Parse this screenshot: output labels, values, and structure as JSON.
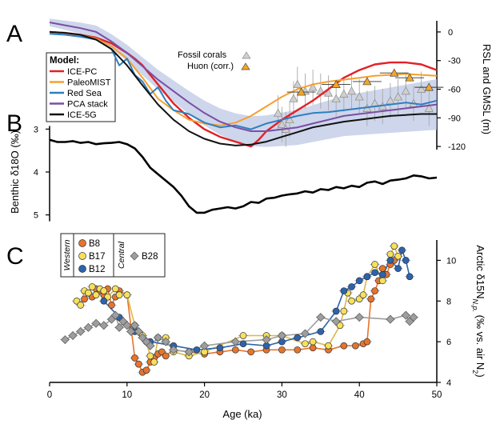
{
  "panel_letters": {
    "a": "A",
    "b": "B",
    "c": "C"
  },
  "x_axis": {
    "label": "Age (ka)",
    "ticks": [
      0,
      10,
      20,
      30,
      40,
      50
    ],
    "range": [
      0,
      50
    ]
  },
  "chart_data": [
    {
      "panel": "A",
      "type": "line",
      "ylabel": "RSL and GMSL (m)",
      "yticks": [
        0,
        -30,
        -60,
        -90,
        -120
      ],
      "ylim": [
        -130,
        10
      ],
      "legend_title": "Model:",
      "legend_placement": "upper-left",
      "series": [
        {
          "name": "ICE-PC",
          "color": "#e32027",
          "x": [
            0,
            2,
            4,
            6,
            8,
            10,
            11,
            12,
            13,
            14,
            15,
            16,
            18,
            20,
            22,
            24,
            26,
            27,
            28,
            30,
            32,
            34,
            36,
            38,
            40,
            42,
            44,
            46,
            48,
            50
          ],
          "y": [
            0,
            -1,
            -3,
            -6,
            -12,
            -22,
            -28,
            -35,
            -45,
            -55,
            -65,
            -75,
            -90,
            -102,
            -110,
            -115,
            -120,
            -113,
            -104,
            -92,
            -82,
            -72,
            -60,
            -48,
            -40,
            -34,
            -32,
            -32,
            -34,
            -40
          ]
        },
        {
          "name": "PaleoMIST",
          "color": "#f5a02e",
          "x": [
            0,
            2,
            4,
            6,
            8,
            10,
            12,
            14,
            16,
            18,
            20,
            22,
            24,
            26,
            28,
            30,
            32,
            34,
            36,
            38,
            40,
            42,
            44,
            46,
            48,
            50
          ],
          "y": [
            0,
            -1,
            -3,
            -7,
            -15,
            -28,
            -48,
            -70,
            -82,
            -92,
            -96,
            -98,
            -95,
            -88,
            -78,
            -68,
            -60,
            -55,
            -52,
            -50,
            -48,
            -46,
            -45,
            -44,
            -45,
            -46
          ]
        },
        {
          "name": "Red Sea",
          "color": "#2e7fbf",
          "x": [
            0,
            2,
            4,
            6,
            8,
            9,
            10,
            11,
            12,
            13,
            14,
            15,
            16,
            18,
            20,
            22,
            24,
            26,
            28,
            30,
            32,
            34,
            36,
            38,
            40,
            42,
            44,
            46,
            48,
            50
          ],
          "y": [
            -2,
            -3,
            -5,
            -8,
            -18,
            -35,
            -28,
            -45,
            -52,
            -65,
            -58,
            -72,
            -82,
            -86,
            -95,
            -100,
            -98,
            -102,
            -96,
            -92,
            -88,
            -85,
            -84,
            -82,
            -80,
            -78,
            -76,
            -74,
            -76,
            -72
          ]
        },
        {
          "name": "PCA stack",
          "color": "#7b4ea3",
          "x": [
            0,
            2,
            4,
            6,
            8,
            10,
            12,
            14,
            16,
            18,
            20,
            22,
            24,
            26,
            28,
            30,
            32,
            34,
            36,
            38,
            40,
            42,
            44,
            46,
            48,
            50
          ],
          "y": [
            10,
            7,
            4,
            0,
            -10,
            -22,
            -36,
            -50,
            -62,
            -74,
            -85,
            -94,
            -100,
            -104,
            -104,
            -102,
            -100,
            -96,
            -92,
            -88,
            -86,
            -84,
            -82,
            -80,
            -78,
            -76
          ]
        },
        {
          "name": "ICE-5G",
          "color": "#111111",
          "x": [
            0,
            2,
            4,
            6,
            8,
            10,
            12,
            14,
            16,
            18,
            20,
            22,
            24,
            26,
            28,
            30,
            32,
            34,
            36,
            38,
            40,
            42,
            44,
            46,
            48,
            50
          ],
          "y": [
            0,
            -1,
            -3,
            -8,
            -18,
            -35,
            -56,
            -76,
            -92,
            -104,
            -112,
            -117,
            -119,
            -118,
            -115,
            -110,
            -105,
            -100,
            -97,
            -94,
            -92,
            -90,
            -88,
            -87,
            -86,
            -86
          ]
        }
      ],
      "markers_legend": [
        {
          "name": "Fossil corals",
          "color": "#c8c8c8"
        },
        {
          "name": "Huon (corr.)",
          "color": "#f5a623"
        }
      ],
      "fossil_corals": [
        {
          "x": 29.5,
          "y": -85
        },
        {
          "x": 30.0,
          "y": -97
        },
        {
          "x": 30.5,
          "y": -102
        },
        {
          "x": 31.0,
          "y": -92
        },
        {
          "x": 31.5,
          "y": -70
        },
        {
          "x": 32.0,
          "y": -55
        },
        {
          "x": 33.0,
          "y": -62
        },
        {
          "x": 34.0,
          "y": -58
        },
        {
          "x": 35.0,
          "y": -62
        },
        {
          "x": 36.0,
          "y": -64
        },
        {
          "x": 37.0,
          "y": -70
        },
        {
          "x": 38.0,
          "y": -65
        },
        {
          "x": 39.0,
          "y": -62
        },
        {
          "x": 40.0,
          "y": -68
        },
        {
          "x": 41.0,
          "y": -80
        },
        {
          "x": 42.0,
          "y": -75
        },
        {
          "x": 43.0,
          "y": -78
        },
        {
          "x": 44.0,
          "y": -72
        },
        {
          "x": 45.0,
          "y": -68
        },
        {
          "x": 46.0,
          "y": -62
        },
        {
          "x": 47.0,
          "y": -75
        },
        {
          "x": 48.0,
          "y": -60
        },
        {
          "x": 49.0,
          "y": -80
        }
      ],
      "huon_corr": [
        {
          "x": 32.5,
          "y": -63
        },
        {
          "x": 37.0,
          "y": -55
        },
        {
          "x": 41.0,
          "y": -52
        },
        {
          "x": 44.5,
          "y": -43
        },
        {
          "x": 46.5,
          "y": -48
        },
        {
          "x": 49.0,
          "y": -58
        }
      ]
    },
    {
      "panel": "B",
      "type": "line",
      "ylabel": "Benthic δ18O (‰)",
      "yticks": [
        3,
        4,
        5
      ],
      "ylim": [
        5.25,
        2.75
      ],
      "y_inverted": true,
      "series": [
        {
          "name": "Benthic",
          "color": "#000000",
          "x": [
            0,
            1,
            2,
            3,
            4,
            5,
            6,
            7,
            8,
            9,
            10,
            11,
            12,
            13,
            14,
            15,
            16,
            17,
            18,
            19,
            20,
            21,
            22,
            23,
            24,
            25,
            26,
            27,
            28,
            29,
            30,
            31,
            32,
            33,
            34,
            35,
            36,
            37,
            38,
            39,
            40,
            41,
            42,
            43,
            44,
            45,
            46,
            47,
            48,
            49,
            50
          ],
          "y": [
            3.25,
            3.3,
            3.3,
            3.28,
            3.32,
            3.3,
            3.35,
            3.33,
            3.32,
            3.3,
            3.35,
            3.45,
            3.65,
            3.9,
            4.05,
            4.2,
            4.35,
            4.55,
            4.8,
            4.95,
            4.95,
            4.88,
            4.85,
            4.82,
            4.85,
            4.8,
            4.7,
            4.72,
            4.62,
            4.6,
            4.55,
            4.52,
            4.5,
            4.45,
            4.48,
            4.4,
            4.42,
            4.35,
            4.38,
            4.32,
            4.35,
            4.25,
            4.22,
            4.28,
            4.2,
            4.18,
            4.15,
            4.08,
            4.1,
            4.15,
            4.13
          ]
        }
      ]
    },
    {
      "panel": "C",
      "type": "scatter",
      "ylabel": "Arctic δ15N",
      "ylabel_sub": "N.p.",
      "ylabel_units": "(‰ vs. air N",
      "ylabel_units_sub": "2",
      "ylabel_units_end": ")",
      "yticks": [
        4,
        6,
        8,
        10
      ],
      "ylim": [
        4,
        11
      ],
      "legend_placement": "upper-left",
      "legend_groups": {
        "western": "Western",
        "central": "Central"
      },
      "series": [
        {
          "name": "B8",
          "color": "#e8742a",
          "marker": "circle",
          "x": [
            4.5,
            5.0,
            5.5,
            6.0,
            6.5,
            7.0,
            7.5,
            8.0,
            8.5,
            9.0,
            10.0,
            11.0,
            11.5,
            12.0,
            12.5,
            13.0,
            13.5,
            14.0,
            14.5,
            15.0,
            16.0,
            18.0,
            20.0,
            22.0,
            24.0,
            26.0,
            28.0,
            30.0,
            32.0,
            34.0,
            36.0,
            38.0,
            39.5,
            40.5,
            41.0,
            41.5,
            42.0,
            42.5,
            43.0,
            43.5,
            44.0,
            44.5
          ],
          "y": [
            8.1,
            8.4,
            8.2,
            8.6,
            8.5,
            8.3,
            8.6,
            7.8,
            8.2,
            8.5,
            8.3,
            5.2,
            4.9,
            4.5,
            4.6,
            5.0,
            5.2,
            5.4,
            5.5,
            5.3,
            5.6,
            5.5,
            5.4,
            5.5,
            5.6,
            5.5,
            5.6,
            5.6,
            5.6,
            5.7,
            5.6,
            5.8,
            5.8,
            5.9,
            6.0,
            8.1,
            8.5,
            9.0,
            9.6,
            9.3,
            9.8,
            10.0
          ]
        },
        {
          "name": "B17",
          "color": "#f7e05b",
          "marker": "circle",
          "x": [
            3.5,
            4.0,
            4.5,
            5.0,
            5.5,
            6.0,
            6.5,
            7.0,
            7.5,
            8.5,
            9.0,
            10.0,
            11.0,
            12.0,
            12.5,
            13.0,
            13.5,
            14.0,
            15.0,
            16.0,
            18.0,
            20.0,
            25.0,
            28.0,
            30.0,
            33.0,
            34.0,
            36.0,
            37.5,
            38.0,
            38.5,
            39.0,
            40.0,
            40.5,
            41.0,
            42.0,
            43.0,
            44.0,
            44.5,
            45.0
          ],
          "y": [
            8.0,
            7.8,
            8.5,
            8.4,
            8.7,
            8.3,
            8.6,
            8.5,
            8.2,
            8.6,
            8.3,
            8.3,
            6.8,
            6.3,
            6.0,
            5.3,
            5.0,
            6.2,
            6.2,
            5.5,
            5.3,
            5.5,
            6.3,
            6.3,
            6.3,
            5.9,
            6.0,
            5.8,
            6.8,
            7.5,
            8.4,
            8.0,
            8.1,
            8.3,
            9.2,
            9.8,
            9.0,
            10.3,
            10.7,
            10.2
          ]
        },
        {
          "name": "B12",
          "color": "#2d63ad",
          "marker": "circle",
          "x": [
            7.0,
            9.0,
            11.0,
            13.0,
            16.0,
            19.0,
            22.0,
            25.0,
            28.0,
            30.0,
            32.0,
            35.0,
            37.0,
            38.0,
            39.0,
            40.0,
            41.0,
            42.0,
            43.0,
            44.0,
            45.0,
            45.5,
            46.0,
            46.5
          ],
          "y": [
            8.0,
            7.2,
            6.5,
            6.0,
            5.8,
            5.6,
            5.7,
            5.9,
            5.8,
            6.0,
            6.2,
            6.5,
            7.5,
            8.5,
            8.7,
            9.0,
            9.2,
            9.4,
            9.3,
            10.0,
            9.6,
            10.5,
            10.0,
            9.2
          ]
        },
        {
          "name": "B28",
          "color": "#9e9e9e",
          "marker": "diamond",
          "x": [
            2.0,
            3.0,
            4.0,
            5.0,
            6.0,
            7.0,
            8.0,
            8.5,
            9.0,
            9.5,
            10.0,
            10.5,
            11.0,
            11.5,
            12.0,
            12.5,
            13.0,
            14.0,
            15.0,
            16.0,
            18.0,
            20.0,
            24.0,
            28.0,
            30.0,
            33.0,
            35.0,
            37.0,
            40.0,
            44.0,
            46.0,
            46.5,
            47.0
          ],
          "y": [
            6.1,
            6.3,
            6.5,
            6.7,
            6.9,
            6.8,
            7.1,
            7.3,
            6.7,
            7.0,
            6.8,
            6.5,
            6.8,
            6.5,
            6.2,
            6.0,
            5.8,
            6.2,
            6.0,
            5.6,
            5.5,
            5.8,
            6.0,
            6.1,
            6.3,
            6.4,
            7.2,
            7.0,
            7.2,
            7.1,
            7.3,
            7.0,
            7.2
          ]
        }
      ]
    }
  ]
}
